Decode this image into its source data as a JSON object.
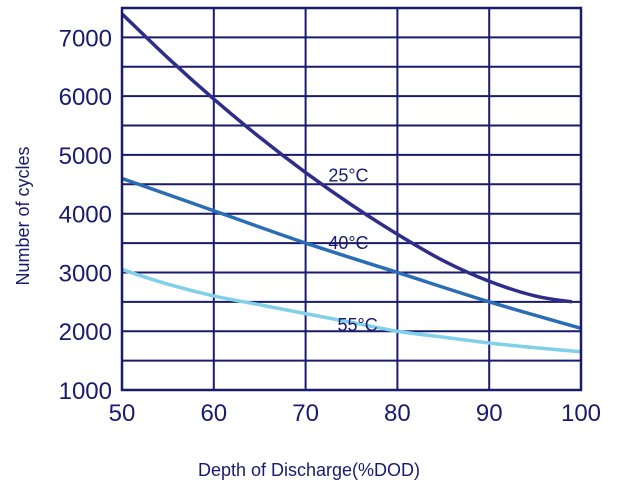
{
  "chart_data": {
    "type": "line",
    "xlabel": "Depth of Discharge(%DOD)",
    "ylabel": "Number of cycles",
    "xlim": [
      50,
      100
    ],
    "ylim": [
      1000,
      7500
    ],
    "x_ticks": [
      "50",
      "60",
      "70",
      "80",
      "90",
      "100"
    ],
    "y_ticks": [
      "1000",
      "2000",
      "3000",
      "4000",
      "5000",
      "6000",
      "7000"
    ],
    "grid": true,
    "frame_color": "#1a1a6e",
    "series": [
      {
        "name": "25°C",
        "color": "#2e2e8a",
        "x": [
          50,
          55,
          60,
          65,
          70,
          75,
          80,
          85,
          90,
          95,
          99
        ],
        "y": [
          7400,
          6650,
          5950,
          5300,
          4700,
          4150,
          3650,
          3200,
          2850,
          2600,
          2500
        ]
      },
      {
        "name": "40°C",
        "color": "#2a6db5",
        "x": [
          50,
          60,
          70,
          80,
          90,
          100
        ],
        "y": [
          4600,
          4050,
          3500,
          3000,
          2500,
          2050
        ]
      },
      {
        "name": "55°C",
        "color": "#7fd0e8",
        "x": [
          50,
          55,
          60,
          65,
          70,
          75,
          80,
          85,
          90,
          95,
          100
        ],
        "y": [
          3050,
          2800,
          2600,
          2450,
          2300,
          2150,
          2000,
          1900,
          1800,
          1720,
          1650
        ]
      }
    ]
  }
}
